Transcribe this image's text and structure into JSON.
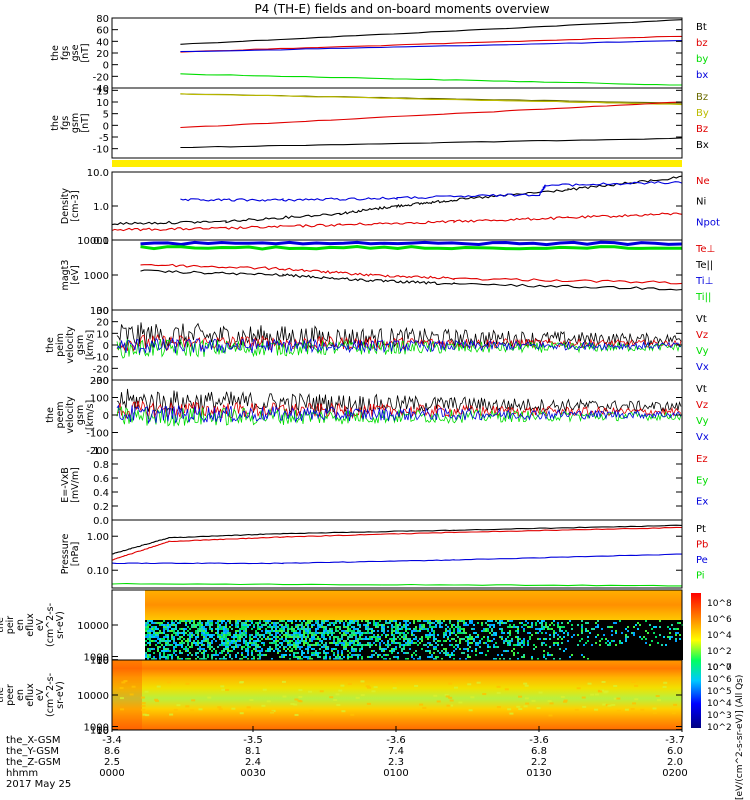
{
  "title": "P4 (TH-E) fields and on-board moments overview",
  "colors": {
    "black": "#000000",
    "red": "#e00000",
    "green": "#00dd00",
    "blue": "#0000dd",
    "yellow": "#ffee00",
    "olive": "#6b6b00",
    "gold": "#bbbb00"
  },
  "chart_data": [
    {
      "id": "fgs_gse",
      "type": "line",
      "ylabel": [
        "the",
        "fgs",
        "gse",
        "[nT]"
      ],
      "ylim": [
        -40,
        80
      ],
      "ticks": [
        "80",
        "60",
        "40",
        "20",
        "0",
        "-20",
        "-40"
      ],
      "tickvals": [
        80,
        60,
        40,
        20,
        0,
        -20,
        -40
      ],
      "series": [
        {
          "name": "Bt",
          "color": "black",
          "x": [
            0.12,
            1
          ],
          "y": [
            35,
            77
          ]
        },
        {
          "name": "bz",
          "color": "red",
          "x": [
            0.12,
            1
          ],
          "y": [
            22,
            49
          ]
        },
        {
          "name": "by",
          "color": "green",
          "x": [
            0.12,
            1
          ],
          "y": [
            -16,
            -35
          ]
        },
        {
          "name": "bx",
          "color": "blue",
          "x": [
            0.12,
            1
          ],
          "y": [
            22,
            41
          ]
        }
      ]
    },
    {
      "id": "fgs_gsm",
      "type": "line",
      "ylabel": [
        "the",
        "fgs",
        "gsm",
        "[nT]"
      ],
      "ylim": [
        -14,
        16
      ],
      "ticks": [
        "15",
        "10",
        "5",
        "0",
        "-5",
        "-10"
      ],
      "tickvals": [
        15,
        10,
        5,
        0,
        -5,
        -10
      ],
      "series": [
        {
          "name": "Bz",
          "color": "olive",
          "x": [
            0.12,
            1
          ],
          "y": [
            13.5,
            9.5
          ]
        },
        {
          "name": "By",
          "color": "gold",
          "x": [
            0.12,
            1
          ],
          "y": [
            13.5,
            9
          ]
        },
        {
          "name": "Bz",
          "color": "red",
          "x": [
            0.12,
            1
          ],
          "y": [
            -1,
            10
          ]
        },
        {
          "name": "Bx",
          "color": "black",
          "x": [
            0.12,
            1
          ],
          "y": [
            -9.5,
            -5.5
          ]
        }
      ]
    },
    {
      "id": "density",
      "type": "line",
      "log": true,
      "ylabel": [
        "Density",
        "[cm-3]"
      ],
      "ylim": [
        0.1,
        10
      ],
      "ticks": [
        "10.0",
        "1.0",
        "0.1"
      ],
      "tickvals": [
        10,
        1,
        0.1
      ],
      "series": [
        {
          "name": "Ne",
          "color": "red",
          "x": [
            0,
            0.2,
            0.4,
            0.6,
            0.8,
            1
          ],
          "y": [
            0.2,
            0.22,
            0.28,
            0.35,
            0.45,
            0.6
          ]
        },
        {
          "name": "Ni",
          "color": "black",
          "x": [
            0,
            0.2,
            0.4,
            0.5,
            0.6,
            0.8,
            1
          ],
          "y": [
            0.3,
            0.35,
            0.6,
            1.0,
            1.5,
            3,
            7
          ]
        },
        {
          "name": "Npot",
          "color": "blue",
          "x": [
            0.12,
            0.3,
            0.5,
            0.75,
            0.76,
            1
          ],
          "y": [
            1.5,
            1.5,
            1.7,
            2.2,
            4,
            5
          ]
        }
      ]
    },
    {
      "id": "magt3",
      "type": "line",
      "log": true,
      "ylabel": [
        "magt3",
        "[eV]"
      ],
      "ylim": [
        100,
        10000
      ],
      "ticks": [
        "10000",
        "1000",
        "100"
      ],
      "tickvals": [
        10000,
        1000,
        100
      ],
      "series": [
        {
          "name": "Te⊥",
          "color": "red",
          "x": [
            0.05,
            0.3,
            0.45,
            0.6,
            1
          ],
          "y": [
            2000,
            1500,
            1000,
            800,
            600
          ]
        },
        {
          "name": "Te||",
          "color": "black",
          "x": [
            0.05,
            0.3,
            0.45,
            0.6,
            1
          ],
          "y": [
            1300,
            1000,
            700,
            550,
            400
          ]
        },
        {
          "name": "Ti⊥",
          "color": "blue",
          "x": [
            0.05,
            1
          ],
          "y": [
            8000,
            8000
          ]
        },
        {
          "name": "Ti||",
          "color": "green",
          "x": [
            0.05,
            1
          ],
          "y": [
            6000,
            6000
          ]
        }
      ]
    },
    {
      "id": "peim",
      "type": "noise",
      "ylabel": [
        "the",
        "peim",
        "velocity",
        "gsm",
        "[km/s]"
      ],
      "ylim": [
        -30,
        30
      ],
      "ticks": [
        "30",
        "20",
        "10",
        "0",
        "-10",
        "-20",
        "-30"
      ],
      "tickvals": [
        30,
        20,
        10,
        0,
        -10,
        -20,
        -30
      ],
      "series": [
        {
          "name": "Vt",
          "color": "black",
          "base": 8,
          "amp": 10
        },
        {
          "name": "Vz",
          "color": "red",
          "base": 2,
          "amp": 6
        },
        {
          "name": "Vy",
          "color": "green",
          "base": -3,
          "amp": 7
        },
        {
          "name": "Vx",
          "color": "blue",
          "base": -1,
          "amp": 6
        }
      ]
    },
    {
      "id": "peem",
      "type": "noise",
      "ylabel": [
        "the",
        "peem",
        "velocity",
        "gsm",
        "[km/s]"
      ],
      "ylim": [
        -200,
        200
      ],
      "ticks": [
        "200",
        "100",
        "0",
        "-100",
        "-200"
      ],
      "tickvals": [
        200,
        100,
        0,
        -100,
        -200
      ],
      "series": [
        {
          "name": "Vt",
          "color": "black",
          "base": 80,
          "amp": 60
        },
        {
          "name": "Vz",
          "color": "red",
          "base": 30,
          "amp": 45
        },
        {
          "name": "Vy",
          "color": "green",
          "base": -10,
          "amp": 50
        },
        {
          "name": "Vx",
          "color": "blue",
          "base": 5,
          "amp": 45
        }
      ]
    },
    {
      "id": "efield",
      "type": "empty",
      "ylabel": [
        "E=-VxB",
        "[mV/m]"
      ],
      "ylim": [
        0,
        1
      ],
      "ticks": [
        "1.0",
        "0.8",
        "0.6",
        "0.4",
        "0.2",
        "0.0"
      ],
      "tickvals": [
        1,
        0.8,
        0.6,
        0.4,
        0.2,
        0
      ],
      "series": [
        {
          "name": "Ez",
          "color": "red"
        },
        {
          "name": "Ey",
          "color": "green"
        },
        {
          "name": "Ex",
          "color": "blue"
        }
      ]
    },
    {
      "id": "pressure",
      "type": "line",
      "log": true,
      "ylabel": [
        "Pressure",
        "[nPa]"
      ],
      "ylim": [
        0.03,
        3
      ],
      "ticks": [
        "1.00",
        "0.10"
      ],
      "tickvals": [
        1,
        0.1
      ],
      "series": [
        {
          "name": "Pt",
          "color": "black",
          "x": [
            0,
            0.1,
            0.3,
            0.6,
            1
          ],
          "y": [
            0.3,
            0.9,
            1.2,
            1.5,
            2.1
          ]
        },
        {
          "name": "Pb",
          "color": "red",
          "x": [
            0,
            0.1,
            0.3,
            0.6,
            1
          ],
          "y": [
            0.2,
            0.7,
            0.95,
            1.3,
            1.8
          ]
        },
        {
          "name": "Pe",
          "color": "blue",
          "x": [
            0,
            0.3,
            0.6,
            1
          ],
          "y": [
            0.16,
            0.16,
            0.2,
            0.3
          ]
        },
        {
          "name": "Pi",
          "color": "green",
          "x": [
            0,
            1
          ],
          "y": [
            0.04,
            0.035
          ]
        }
      ]
    },
    {
      "id": "peir_spec",
      "type": "heatmap",
      "ylabel": [
        "the",
        "peir",
        "en",
        "eflux",
        "eV",
        "(cm^2-s-",
        "sr-eV)"
      ],
      "ylim": [
        5,
        20000
      ],
      "ticks": [
        "10000",
        "1000",
        "100",
        "10"
      ],
      "tickvals": [
        10000,
        1000,
        100,
        10
      ]
    },
    {
      "id": "peer_spec",
      "type": "heatmap",
      "ylabel": [
        "the",
        "peer",
        "en",
        "eflux",
        "eV",
        "(cm^2-s-",
        "sr-eV)"
      ],
      "ylim": [
        5,
        20000
      ],
      "ticks": [
        "10000",
        "1000",
        "100",
        "10"
      ],
      "tickvals": [
        10000,
        1000,
        100,
        10
      ]
    }
  ],
  "colorbar": {
    "label": "[eV/(cm^2-s-sr-eV)] (All Qs)",
    "ticks_top": [
      "10^8",
      "10^6",
      "10^4",
      "10^2",
      "10^0"
    ],
    "ticks_bottom": [
      "10^7",
      "10^6",
      "10^5",
      "10^4",
      "10^3",
      "10^2"
    ]
  },
  "xaxis": {
    "rows": [
      {
        "label": "the_X-GSM",
        "values": [
          "-3.4",
          "-3.5",
          "-3.6",
          "-3.6",
          "-3.7"
        ]
      },
      {
        "label": "the_Y-GSM",
        "values": [
          "8.6",
          "8.1",
          "7.4",
          "6.8",
          "6.0"
        ]
      },
      {
        "label": "the_Z-GSM",
        "values": [
          "2.5",
          "2.4",
          "2.3",
          "2.2",
          "2.0"
        ]
      },
      {
        "label": "hhmm",
        "values": [
          "0000",
          "0030",
          "0100",
          "0130",
          "0200"
        ]
      }
    ],
    "date": "2017 May 25"
  }
}
